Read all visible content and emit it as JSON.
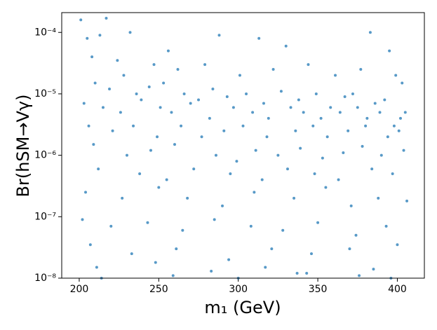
{
  "chart_data": {
    "type": "scatter",
    "xlabel": "m₁ (GeV)",
    "ylabel": "Br(hSM→Vγ)",
    "xlim": [
      189,
      417
    ],
    "xticks": [
      200,
      250,
      300,
      350,
      400
    ],
    "ylim": [
      1e-08,
      0.00021
    ],
    "log_y": true,
    "yticks": [
      {
        "value": 1e-08,
        "label": "10⁻⁸"
      },
      {
        "value": 1e-07,
        "label": "10⁻⁷"
      },
      {
        "value": 1e-06,
        "label": "10⁻⁶"
      },
      {
        "value": 1e-05,
        "label": "10⁻⁵"
      },
      {
        "value": 0.0001,
        "label": "10⁻⁴"
      }
    ],
    "color": "#1f77b4",
    "series": [
      {
        "x": [
          201,
          217,
          205,
          213,
          232,
          288,
          313,
          383,
          256,
          330,
          395,
          208,
          224,
          247,
          262,
          279,
          301,
          322,
          344,
          361,
          377,
          399,
          403,
          210,
          219,
          228,
          236,
          244,
          253,
          266,
          275,
          284,
          293,
          305,
          316,
          327,
          338,
          349,
          358,
          367,
          372,
          386,
          392,
          405,
          203,
          215,
          226,
          239,
          251,
          258,
          270,
          282,
          297,
          309,
          319,
          333,
          341,
          352,
          364,
          375,
          381,
          389,
          398,
          402,
          206,
          221,
          234,
          249,
          264,
          277,
          291,
          303,
          318,
          336,
          347,
          356,
          369,
          380,
          394,
          401,
          209,
          230,
          245,
          260,
          286,
          299,
          311,
          325,
          339,
          353,
          366,
          378,
          390,
          404,
          212,
          238,
          255,
          272,
          295,
          315,
          331,
          348,
          363,
          384,
          397,
          204,
          227,
          250,
          268,
          290,
          310,
          335,
          355,
          371,
          388,
          406,
          202,
          220,
          243,
          265,
          285,
          308,
          328,
          350,
          374,
          393,
          207,
          233,
          261,
          294,
          321,
          346,
          370,
          400,
          211,
          248,
          283,
          317,
          343,
          385,
          214,
          259,
          300,
          337,
          376,
          396
        ],
        "y": [
          0.00016,
          0.00017,
          8e-05,
          9e-05,
          0.0001,
          9e-05,
          8e-05,
          0.0001,
          5e-05,
          6e-05,
          5e-05,
          4e-05,
          3.5e-05,
          3e-05,
          2.5e-05,
          3e-05,
          2e-05,
          2.5e-05,
          3e-05,
          2e-05,
          2.5e-05,
          2e-05,
          1.5e-05,
          1.5e-05,
          1.2e-05,
          2e-05,
          1e-05,
          1.3e-05,
          1.5e-05,
          1e-05,
          8e-06,
          1.2e-05,
          9e-06,
          1e-05,
          7e-06,
          1.1e-05,
          8e-06,
          1e-05,
          6e-06,
          9e-06,
          1e-05,
          7e-06,
          8e-06,
          5e-06,
          7e-06,
          6e-06,
          5e-06,
          8e-06,
          6e-06,
          5e-06,
          7e-06,
          4e-06,
          6e-06,
          5e-06,
          4e-06,
          6e-06,
          5e-06,
          4e-06,
          5e-06,
          6e-06,
          4e-06,
          5e-06,
          3e-06,
          4e-06,
          3e-06,
          2.5e-06,
          3e-06,
          2e-06,
          3e-06,
          2e-06,
          2.5e-06,
          3e-06,
          2e-06,
          2.5e-06,
          3e-06,
          2e-06,
          2.5e-06,
          3e-06,
          2e-06,
          2.5e-06,
          1.5e-06,
          1e-06,
          1.2e-06,
          1.5e-06,
          1e-06,
          8e-07,
          1.2e-06,
          1e-06,
          1.3e-06,
          9e-07,
          1.1e-06,
          1.4e-06,
          1e-06,
          1.2e-06,
          6e-07,
          5e-07,
          4e-07,
          6e-07,
          5e-07,
          4e-07,
          6e-07,
          5e-07,
          4e-07,
          6e-07,
          5e-07,
          2.5e-07,
          2e-07,
          3e-07,
          2e-07,
          1.5e-07,
          2.5e-07,
          2e-07,
          3e-07,
          1.5e-07,
          2e-07,
          1.8e-07,
          9e-08,
          7e-08,
          8e-08,
          6e-08,
          9e-08,
          7e-08,
          6e-08,
          8e-08,
          5e-08,
          7e-08,
          3.5e-08,
          2.5e-08,
          3e-08,
          2e-08,
          3e-08,
          2.5e-08,
          3e-08,
          3.5e-08,
          1.5e-08,
          1.8e-08,
          1.3e-08,
          1.5e-08,
          1.2e-08,
          1.4e-08,
          1e-08,
          1.1e-08,
          1e-08,
          1.2e-08,
          1.1e-08,
          1e-08
        ]
      }
    ]
  }
}
